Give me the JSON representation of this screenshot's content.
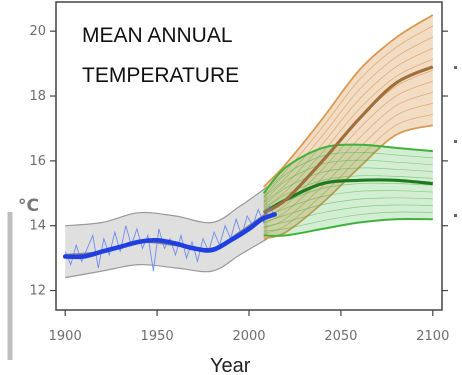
{
  "chart_data": {
    "type": "line",
    "title_lines": [
      "MEAN ANNUAL",
      "TEMPERATURE"
    ],
    "xlabel": "Year",
    "ylabel": "°C",
    "xlim": [
      1895,
      2105
    ],
    "ylim": [
      11.4,
      20.9
    ],
    "x_ticks": [
      1900,
      1950,
      2000,
      2050,
      2100
    ],
    "y_ticks": [
      12,
      14,
      16,
      18,
      20
    ],
    "grid": false,
    "colors": {
      "observed": "#1f3fe0",
      "observed_thin": "#5c7cf0",
      "historical_band": "#c4c4c4",
      "high_scenario": "#d99a55",
      "high_scenario_mean": "#a0703c",
      "low_scenario": "#3db33a",
      "low_scenario_mean": "#1f7a1f"
    },
    "series": [
      {
        "role": "historical_envelope",
        "x": [
          1900,
          1920,
          1940,
          1960,
          1980,
          1995,
          2010
        ],
        "upper": [
          14.0,
          14.1,
          14.4,
          14.3,
          14.1,
          14.6,
          15.2
        ],
        "lower": [
          12.4,
          12.6,
          12.8,
          12.7,
          12.6,
          13.1,
          13.6
        ]
      },
      {
        "role": "historical_mean",
        "x": [
          1900,
          1920,
          1940,
          1960,
          1980,
          1995,
          2010
        ],
        "y": [
          13.1,
          13.2,
          13.5,
          13.4,
          13.3,
          13.8,
          14.4
        ]
      },
      {
        "role": "observed_smoothed",
        "x": [
          1900,
          1910,
          1920,
          1930,
          1940,
          1950,
          1960,
          1970,
          1980,
          1990,
          2000,
          2007,
          2014
        ],
        "y": [
          13.05,
          13.05,
          13.2,
          13.35,
          13.5,
          13.55,
          13.45,
          13.3,
          13.25,
          13.55,
          13.9,
          14.2,
          14.35
        ]
      },
      {
        "role": "observed_annual",
        "x": [
          1900,
          1903,
          1906,
          1909,
          1912,
          1915,
          1918,
          1921,
          1924,
          1927,
          1930,
          1933,
          1936,
          1939,
          1942,
          1945,
          1948,
          1951,
          1954,
          1957,
          1960,
          1963,
          1966,
          1969,
          1972,
          1975,
          1978,
          1981,
          1984,
          1987,
          1990,
          1993,
          1996,
          1999,
          2002,
          2005,
          2008,
          2011,
          2014
        ],
        "y": [
          13.2,
          12.8,
          13.4,
          12.9,
          13.3,
          13.7,
          12.7,
          13.6,
          13.1,
          13.8,
          13.2,
          14.0,
          13.4,
          13.9,
          13.3,
          13.7,
          12.6,
          13.9,
          13.3,
          13.6,
          13.1,
          13.7,
          13.0,
          13.5,
          12.9,
          13.6,
          13.2,
          13.8,
          13.4,
          14.0,
          13.6,
          14.2,
          13.7,
          14.3,
          14.0,
          14.5,
          14.1,
          14.6,
          14.3
        ]
      },
      {
        "role": "high_scenario_envelope",
        "x": [
          2008,
          2020,
          2040,
          2060,
          2080,
          2100
        ],
        "upper": [
          15.2,
          15.9,
          17.3,
          18.8,
          19.8,
          20.5
        ],
        "lower": [
          13.6,
          13.8,
          14.7,
          15.8,
          16.8,
          17.1
        ]
      },
      {
        "role": "high_scenario_mean",
        "x": [
          2008,
          2020,
          2040,
          2060,
          2080,
          2100
        ],
        "y": [
          14.4,
          14.8,
          16.0,
          17.3,
          18.4,
          18.9
        ]
      },
      {
        "role": "low_scenario_envelope",
        "x": [
          2008,
          2020,
          2040,
          2060,
          2080,
          2100
        ],
        "upper": [
          15.0,
          15.8,
          16.4,
          16.5,
          16.4,
          16.3
        ],
        "lower": [
          13.7,
          13.7,
          13.9,
          14.1,
          14.2,
          14.2
        ]
      },
      {
        "role": "low_scenario_mean",
        "x": [
          2008,
          2020,
          2040,
          2060,
          2080,
          2100
        ],
        "y": [
          14.4,
          14.8,
          15.3,
          15.4,
          15.4,
          15.3
        ]
      }
    ]
  }
}
